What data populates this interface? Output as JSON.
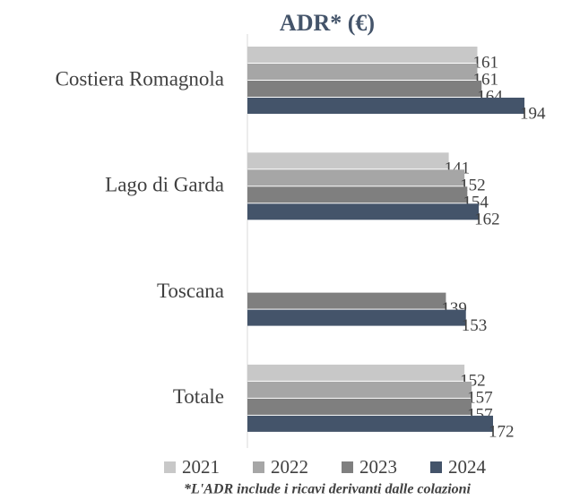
{
  "chart_data": {
    "type": "bar",
    "orientation": "horizontal",
    "title": "ADR* (€)",
    "categories": [
      "Costiera Romagnola",
      "Lago di Garda",
      "Toscana",
      "Totale"
    ],
    "series": [
      {
        "name": "2021",
        "color": "#c8c8c8",
        "values": [
          161,
          141,
          null,
          152
        ]
      },
      {
        "name": "2022",
        "color": "#a6a6a6",
        "values": [
          161,
          152,
          null,
          157
        ]
      },
      {
        "name": "2023",
        "color": "#7f7f7f",
        "values": [
          164,
          154,
          139,
          157
        ]
      },
      {
        "name": "2024",
        "color": "#44546a",
        "values": [
          194,
          162,
          153,
          172
        ]
      }
    ],
    "xlim": [
      0,
      200
    ],
    "legend": "bottom",
    "footnote": "*L'ADR include i ricavi derivanti dalle colazioni"
  }
}
